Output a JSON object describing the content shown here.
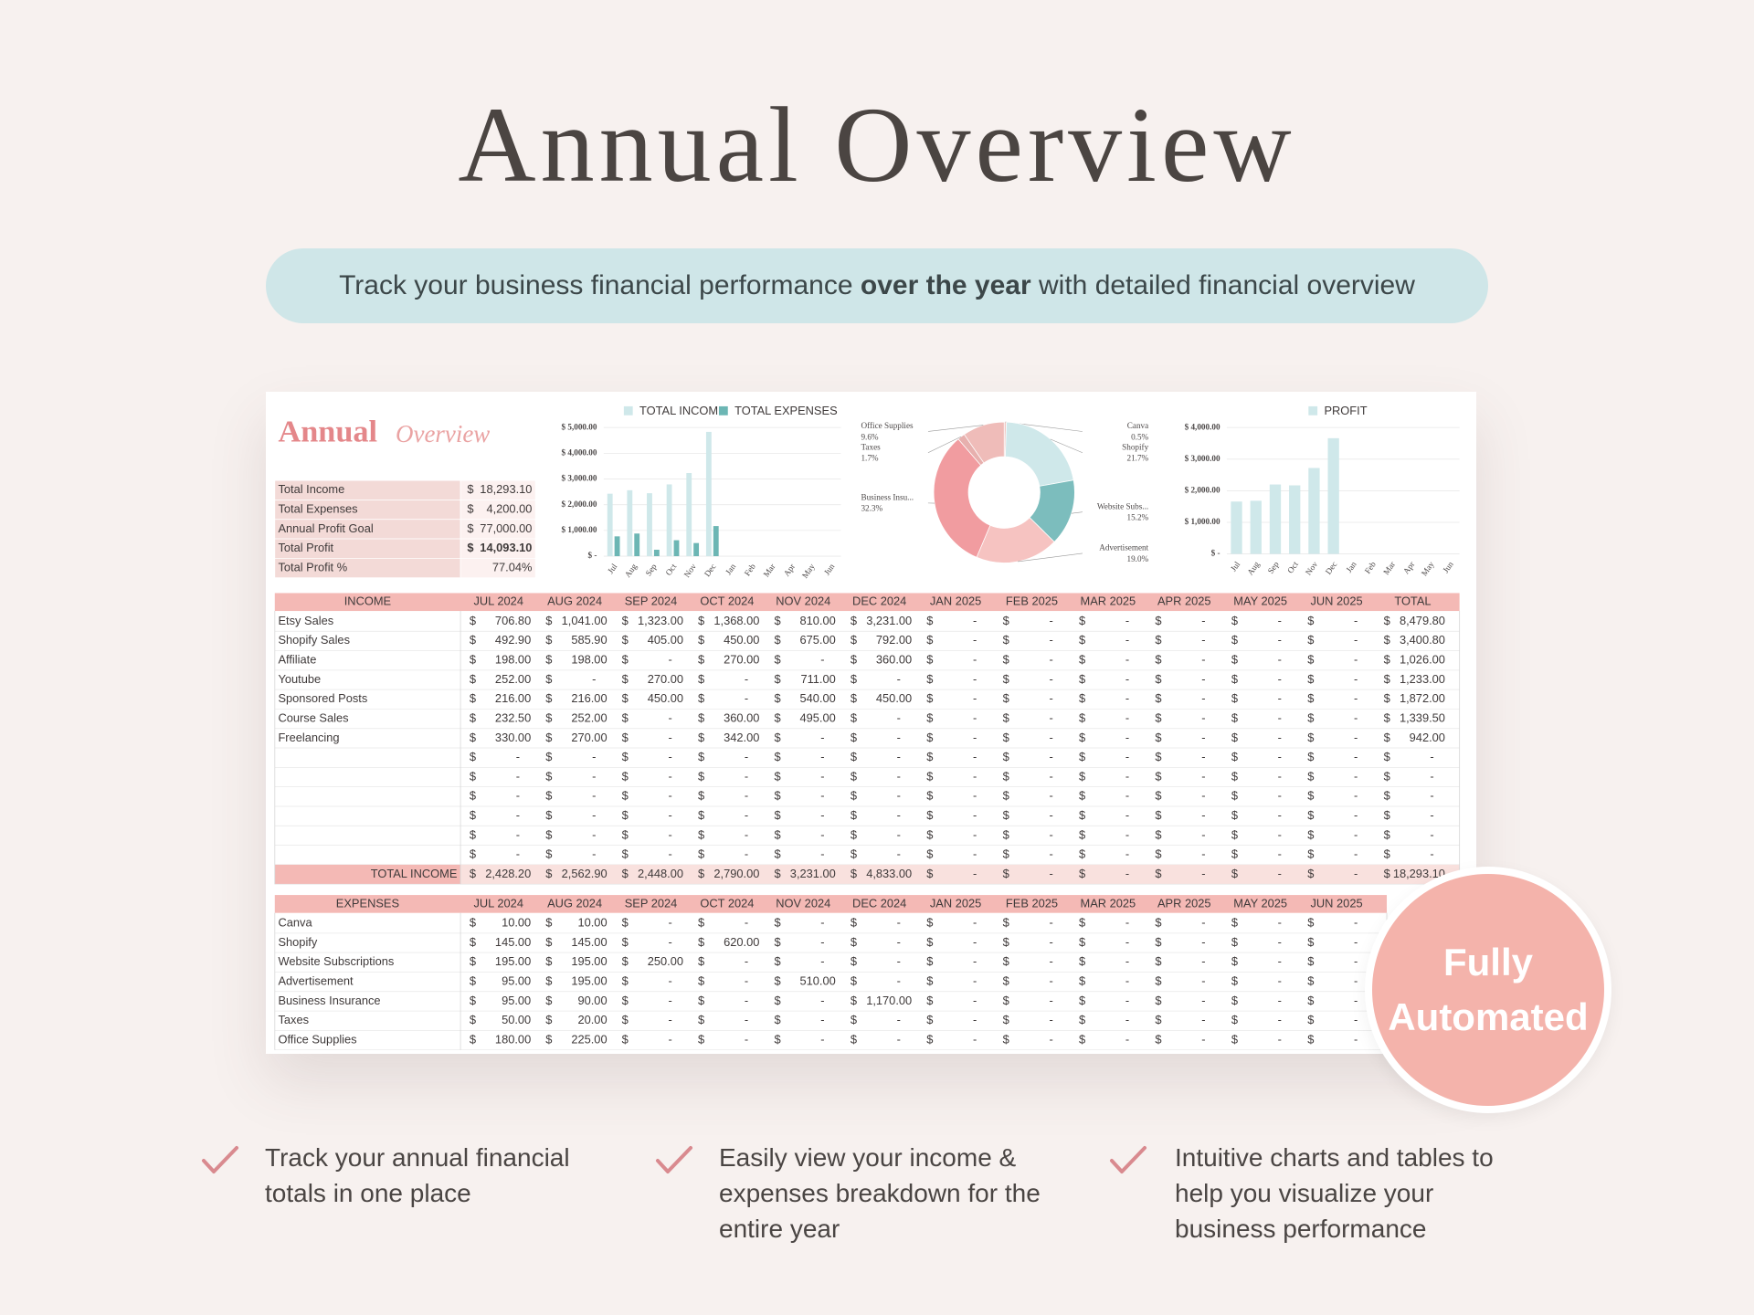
{
  "header": {
    "title": "Annual Overview",
    "subtitle": [
      "Track your business financial performance ",
      "over the year",
      " with detailed financial overview"
    ]
  },
  "sheet": {
    "logo": [
      "Annual",
      "Overview"
    ],
    "currency": "$",
    "summary": [
      {
        "label": "Total Income",
        "value": "18,293.10"
      },
      {
        "label": "Total Expenses",
        "value": "4,200.00"
      },
      {
        "label": "Annual Profit Goal",
        "value": "77,000.00"
      },
      {
        "label": "Total Profit",
        "value": "14,093.10"
      },
      {
        "label": "Total Profit %",
        "value": "77.04%"
      }
    ],
    "income_expense_chart": {
      "type": "bar",
      "categories": [
        "Jul",
        "Aug",
        "Sep",
        "Oct",
        "Nov",
        "Dec",
        "Jan",
        "Feb",
        "Mar",
        "Apr",
        "May",
        "Jun"
      ],
      "series": [
        {
          "name": "TOTAL INCOME",
          "color": "#cfe8ea",
          "values": [
            2428.2,
            2562.9,
            2448,
            2790,
            3231,
            4833,
            0,
            0,
            0,
            0,
            0,
            0
          ]
        },
        {
          "name": "TOTAL EXPENSES",
          "color": "#6cb6b4",
          "values": [
            770,
            880,
            250,
            620,
            510,
            1170,
            0,
            0,
            0,
            0,
            0,
            0
          ]
        }
      ],
      "ylim": [
        0,
        5000
      ],
      "yticks": [
        {
          "value": 5000,
          "label": "$ 5,000.00"
        },
        {
          "value": 4000,
          "label": "$ 4,000.00"
        },
        {
          "value": 3000,
          "label": "$ 3,000.00"
        },
        {
          "value": 2000,
          "label": "$ 2,000.00"
        },
        {
          "value": 1000,
          "label": "$ 1,000.00"
        },
        {
          "value": 0,
          "label": "$ -"
        }
      ],
      "grid": true
    },
    "expense_breakdown": {
      "type": "pie",
      "categories": [
        "Canva",
        "Shopify",
        "Website Subs...",
        "Advertisement",
        "Business Insu...",
        "Taxes",
        "Office Supplies"
      ],
      "values": [
        0.5,
        21.7,
        15.2,
        19.0,
        32.3,
        1.7,
        9.6
      ],
      "value_labels": [
        "0.5%",
        "21.7%",
        "15.2%",
        "19.0%",
        "32.3%",
        "1.7%",
        "9.6%"
      ],
      "colors": [
        "#f0c9c6",
        "#cfe8ea",
        "#7cbdbd",
        "#f6c3c1",
        "#f19ca0",
        "#e7b0ae",
        "#efbcb9"
      ]
    },
    "profit_chart": {
      "type": "bar",
      "categories": [
        "Jul",
        "Aug",
        "Sep",
        "Oct",
        "Nov",
        "Dec",
        "Jan",
        "Feb",
        "Mar",
        "Apr",
        "May",
        "Jun"
      ],
      "series": [
        {
          "name": "PROFIT",
          "color": "#cfe8ea",
          "values": [
            1658.2,
            1682.9,
            2198,
            2170,
            2721,
            3663,
            0,
            0,
            0,
            0,
            0,
            0
          ]
        }
      ],
      "ylim": [
        0,
        4000
      ],
      "yticks": [
        {
          "value": 4000,
          "label": "$ 4,000.00"
        },
        {
          "value": 3000,
          "label": "$ 3,000.00"
        },
        {
          "value": 2000,
          "label": "$ 2,000.00"
        },
        {
          "value": 1000,
          "label": "$ 1,000.00"
        },
        {
          "value": 0,
          "label": "$ -"
        }
      ],
      "grid": true
    },
    "income_table": {
      "header": "INCOME",
      "columns": [
        "JUL 2024",
        "AUG 2024",
        "SEP 2024",
        "OCT 2024",
        "NOV 2024",
        "DEC 2024",
        "JAN 2025",
        "FEB 2025",
        "MAR 2025",
        "APR 2025",
        "MAY 2025",
        "JUN 2025",
        "TOTAL"
      ],
      "rows": [
        {
          "name": "Etsy Sales",
          "cells": [
            "706.80",
            "1,041.00",
            "1,323.00",
            "1,368.00",
            "810.00",
            "3,231.00",
            "-",
            "-",
            "-",
            "-",
            "-",
            "-",
            "8,479.80"
          ]
        },
        {
          "name": "Shopify Sales",
          "cells": [
            "492.90",
            "585.90",
            "405.00",
            "450.00",
            "675.00",
            "792.00",
            "-",
            "-",
            "-",
            "-",
            "-",
            "-",
            "3,400.80"
          ]
        },
        {
          "name": "Affiliate",
          "cells": [
            "198.00",
            "198.00",
            "-",
            "270.00",
            "-",
            "360.00",
            "-",
            "-",
            "-",
            "-",
            "-",
            "-",
            "1,026.00"
          ]
        },
        {
          "name": "Youtube",
          "cells": [
            "252.00",
            "-",
            "270.00",
            "-",
            "711.00",
            "-",
            "-",
            "-",
            "-",
            "-",
            "-",
            "-",
            "1,233.00"
          ]
        },
        {
          "name": "Sponsored Posts",
          "cells": [
            "216.00",
            "216.00",
            "450.00",
            "-",
            "540.00",
            "450.00",
            "-",
            "-",
            "-",
            "-",
            "-",
            "-",
            "1,872.00"
          ]
        },
        {
          "name": "Course Sales",
          "cells": [
            "232.50",
            "252.00",
            "-",
            "360.00",
            "495.00",
            "-",
            "-",
            "-",
            "-",
            "-",
            "-",
            "-",
            "1,339.50"
          ]
        },
        {
          "name": "Freelancing",
          "cells": [
            "330.00",
            "270.00",
            "-",
            "342.00",
            "-",
            "-",
            "-",
            "-",
            "-",
            "-",
            "-",
            "-",
            "942.00"
          ]
        },
        {
          "name": null,
          "cells": [
            "-",
            "-",
            "-",
            "-",
            "-",
            "-",
            "-",
            "-",
            "-",
            "-",
            "-",
            "-",
            "-"
          ]
        },
        {
          "name": null,
          "cells": [
            "-",
            "-",
            "-",
            "-",
            "-",
            "-",
            "-",
            "-",
            "-",
            "-",
            "-",
            "-",
            "-"
          ]
        },
        {
          "name": null,
          "cells": [
            "-",
            "-",
            "-",
            "-",
            "-",
            "-",
            "-",
            "-",
            "-",
            "-",
            "-",
            "-",
            "-"
          ]
        },
        {
          "name": null,
          "cells": [
            "-",
            "-",
            "-",
            "-",
            "-",
            "-",
            "-",
            "-",
            "-",
            "-",
            "-",
            "-",
            "-"
          ]
        },
        {
          "name": null,
          "cells": [
            "-",
            "-",
            "-",
            "-",
            "-",
            "-",
            "-",
            "-",
            "-",
            "-",
            "-",
            "-",
            "-"
          ]
        },
        {
          "name": null,
          "cells": [
            "-",
            "-",
            "-",
            "-",
            "-",
            "-",
            "-",
            "-",
            "-",
            "-",
            "-",
            "-",
            "-"
          ]
        }
      ],
      "total": {
        "name": "TOTAL INCOME",
        "cells": [
          "2,428.20",
          "2,562.90",
          "2,448.00",
          "2,790.00",
          "3,231.00",
          "4,833.00",
          "-",
          "-",
          "-",
          "-",
          "-",
          "-",
          "18,293.10"
        ]
      }
    },
    "expense_table": {
      "header": "EXPENSES",
      "columns": [
        "JUL 2024",
        "AUG 2024",
        "SEP 2024",
        "OCT 2024",
        "NOV 2024",
        "DEC 2024",
        "JAN 2025",
        "FEB 2025",
        "MAR 2025",
        "APR 2025",
        "MAY 2025",
        "JUN 2025"
      ],
      "rows": [
        {
          "name": "Canva",
          "cells": [
            "10.00",
            "10.00",
            "-",
            "-",
            "-",
            "-",
            "-",
            "-",
            "-",
            "-",
            "-",
            "-"
          ]
        },
        {
          "name": "Shopify",
          "cells": [
            "145.00",
            "145.00",
            "-",
            "620.00",
            "-",
            "-",
            "-",
            "-",
            "-",
            "-",
            "-",
            "-"
          ]
        },
        {
          "name": "Website Subscriptions",
          "cells": [
            "195.00",
            "195.00",
            "250.00",
            "-",
            "-",
            "-",
            "-",
            "-",
            "-",
            "-",
            "-",
            "-"
          ]
        },
        {
          "name": "Advertisement",
          "cells": [
            "95.00",
            "195.00",
            "-",
            "-",
            "510.00",
            "-",
            "-",
            "-",
            "-",
            "-",
            "-",
            "-"
          ]
        },
        {
          "name": "Business Insurance",
          "cells": [
            "95.00",
            "90.00",
            "-",
            "-",
            "-",
            "1,170.00",
            "-",
            "-",
            "-",
            "-",
            "-",
            "-"
          ]
        },
        {
          "name": "Taxes",
          "cells": [
            "50.00",
            "20.00",
            "-",
            "-",
            "-",
            "-",
            "-",
            "-",
            "-",
            "-",
            "-",
            "-"
          ]
        },
        {
          "name": "Office Supplies",
          "cells": [
            "180.00",
            "225.00",
            "-",
            "-",
            "-",
            "-",
            "-",
            "-",
            "-",
            "-",
            "-",
            "-"
          ]
        }
      ]
    }
  },
  "badge": "Fully Automated",
  "features": [
    "Track your annual  financial totals in one place",
    "Easily view your income & expenses breakdown for the entire year",
    "Intuitive charts and tables to help you visualize your business performance"
  ]
}
